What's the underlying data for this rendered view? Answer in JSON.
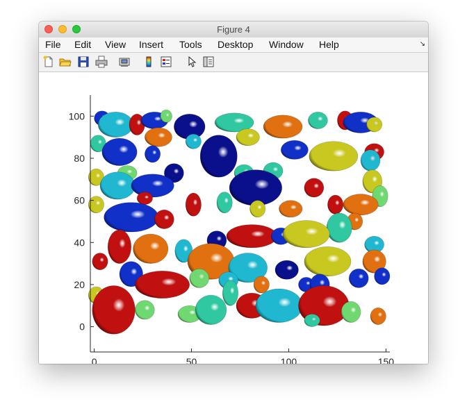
{
  "window": {
    "title": "Figure 4"
  },
  "menu": [
    {
      "id": "file",
      "label": "File"
    },
    {
      "id": "edit",
      "label": "Edit"
    },
    {
      "id": "view",
      "label": "View"
    },
    {
      "id": "insert",
      "label": "Insert"
    },
    {
      "id": "tools",
      "label": "Tools"
    },
    {
      "id": "desktop",
      "label": "Desktop"
    },
    {
      "id": "window",
      "label": "Window"
    },
    {
      "id": "help",
      "label": "Help"
    }
  ],
  "menu_corner_glyph": "↘",
  "toolbar": [
    {
      "id": "new-figure",
      "icon": "new-figure-icon"
    },
    {
      "id": "open-file",
      "icon": "folder-icon"
    },
    {
      "id": "save-figure",
      "icon": "save-icon"
    },
    {
      "id": "print-figure",
      "icon": "print-icon"
    },
    {
      "id": "link-plot",
      "icon": "link-plot-icon"
    },
    {
      "id": "insert-colorbar",
      "icon": "colorbar-icon"
    },
    {
      "id": "insert-legend",
      "icon": "legend-icon"
    },
    {
      "id": "edit-plot",
      "icon": "pointer-icon"
    },
    {
      "id": "property-editor",
      "icon": "property-inspector-icon"
    }
  ],
  "chart_data": {
    "type": "scatter",
    "render": "3d ellipsoids viewed from top",
    "xlim": [
      -2,
      152
    ],
    "ylim": [
      -12,
      110
    ],
    "xticks": [
      0,
      50,
      100,
      150
    ],
    "yticks": [
      0,
      20,
      40,
      60,
      80,
      100
    ],
    "grid": false,
    "colors": {
      "blue": "#1030c8",
      "navy": "#0a0f8c",
      "cyan": "#20b8d0",
      "teal": "#30c8a0",
      "green": "#70d870",
      "yellow": "#c8c820",
      "orange": "#e07010",
      "red": "#c01010"
    },
    "points": [
      {
        "x": 4,
        "y": 99,
        "rx": 4,
        "ry": 3.5,
        "color": "blue"
      },
      {
        "x": 11,
        "y": 96,
        "rx": 9,
        "ry": 6,
        "color": "cyan"
      },
      {
        "x": 22,
        "y": 96,
        "rx": 4,
        "ry": 5,
        "color": "red"
      },
      {
        "x": 31,
        "y": 98,
        "rx": 7,
        "ry": 4,
        "color": "blue"
      },
      {
        "x": 37,
        "y": 100,
        "rx": 3,
        "ry": 3,
        "color": "green"
      },
      {
        "x": 33,
        "y": 90,
        "rx": 7,
        "ry": 4.5,
        "color": "orange"
      },
      {
        "x": 49,
        "y": 95,
        "rx": 8,
        "ry": 6,
        "color": "navy"
      },
      {
        "x": 51,
        "y": 88,
        "rx": 4,
        "ry": 3.5,
        "color": "cyan"
      },
      {
        "x": 72,
        "y": 97,
        "rx": 10,
        "ry": 4.5,
        "color": "teal"
      },
      {
        "x": 79,
        "y": 90,
        "rx": 6,
        "ry": 4,
        "color": "yellow"
      },
      {
        "x": 97,
        "y": 95,
        "rx": 10,
        "ry": 5.5,
        "color": "orange"
      },
      {
        "x": 115,
        "y": 98,
        "rx": 5,
        "ry": 4,
        "color": "teal"
      },
      {
        "x": 129,
        "y": 98,
        "rx": 4,
        "ry": 4.5,
        "color": "red"
      },
      {
        "x": 137,
        "y": 97,
        "rx": 9,
        "ry": 5,
        "color": "blue"
      },
      {
        "x": 144,
        "y": 96,
        "rx": 4,
        "ry": 3.5,
        "color": "yellow"
      },
      {
        "x": 2,
        "y": 87,
        "rx": 4,
        "ry": 4,
        "color": "teal"
      },
      {
        "x": 13,
        "y": 83,
        "rx": 9,
        "ry": 6.5,
        "color": "blue"
      },
      {
        "x": 30,
        "y": 82,
        "rx": 4,
        "ry": 4,
        "color": "blue"
      },
      {
        "x": 64,
        "y": 81,
        "rx": 9.5,
        "ry": 10,
        "color": "navy"
      },
      {
        "x": 103,
        "y": 84,
        "rx": 7,
        "ry": 4.5,
        "color": "blue"
      },
      {
        "x": 123,
        "y": 81,
        "rx": 12.5,
        "ry": 7,
        "color": "yellow"
      },
      {
        "x": 144,
        "y": 83,
        "rx": 5,
        "ry": 4,
        "color": "red"
      },
      {
        "x": 142,
        "y": 79,
        "rx": 5,
        "ry": 5,
        "color": "cyan"
      },
      {
        "x": 1,
        "y": 71,
        "rx": 4,
        "ry": 4,
        "color": "yellow"
      },
      {
        "x": 17,
        "y": 73,
        "rx": 5,
        "ry": 3.5,
        "color": "green"
      },
      {
        "x": 41,
        "y": 73,
        "rx": 5,
        "ry": 4.5,
        "color": "navy"
      },
      {
        "x": 12,
        "y": 67,
        "rx": 9,
        "ry": 6.5,
        "color": "cyan"
      },
      {
        "x": 30,
        "y": 67,
        "rx": 11,
        "ry": 5.5,
        "color": "blue"
      },
      {
        "x": 77,
        "y": 73,
        "rx": 5,
        "ry": 4,
        "color": "teal"
      },
      {
        "x": 92,
        "y": 74,
        "rx": 5,
        "ry": 4,
        "color": "teal"
      },
      {
        "x": 83,
        "y": 66,
        "rx": 13.5,
        "ry": 8.5,
        "color": "navy"
      },
      {
        "x": 113,
        "y": 66,
        "rx": 5,
        "ry": 4.5,
        "color": "red"
      },
      {
        "x": 143,
        "y": 69,
        "rx": 5,
        "ry": 5.5,
        "color": "yellow"
      },
      {
        "x": 147,
        "y": 62,
        "rx": 4,
        "ry": 5,
        "color": "green"
      },
      {
        "x": 1,
        "y": 58,
        "rx": 4,
        "ry": 4,
        "color": "yellow"
      },
      {
        "x": 26,
        "y": 61,
        "rx": 4,
        "ry": 3,
        "color": "red"
      },
      {
        "x": 51,
        "y": 58,
        "rx": 4,
        "ry": 5.5,
        "color": "red"
      },
      {
        "x": 67,
        "y": 59,
        "rx": 4,
        "ry": 5,
        "color": "teal"
      },
      {
        "x": 84,
        "y": 56,
        "rx": 4,
        "ry": 4,
        "color": "yellow"
      },
      {
        "x": 101,
        "y": 56,
        "rx": 6,
        "ry": 4,
        "color": "orange"
      },
      {
        "x": 124,
        "y": 58,
        "rx": 4,
        "ry": 4.5,
        "color": "red"
      },
      {
        "x": 137,
        "y": 58,
        "rx": 9,
        "ry": 5,
        "color": "orange"
      },
      {
        "x": 134,
        "y": 50,
        "rx": 4,
        "ry": 4,
        "color": "orange"
      },
      {
        "x": 19,
        "y": 52,
        "rx": 14,
        "ry": 7,
        "color": "blue"
      },
      {
        "x": 36,
        "y": 51,
        "rx": 5,
        "ry": 4.5,
        "color": "red"
      },
      {
        "x": 126,
        "y": 47,
        "rx": 6.5,
        "ry": 7,
        "color": "teal"
      },
      {
        "x": 13,
        "y": 38,
        "rx": 6,
        "ry": 8,
        "color": "red"
      },
      {
        "x": 29,
        "y": 37,
        "rx": 9,
        "ry": 7,
        "color": "orange"
      },
      {
        "x": 46,
        "y": 36,
        "rx": 4.5,
        "ry": 5.5,
        "color": "cyan"
      },
      {
        "x": 63,
        "y": 41,
        "rx": 5,
        "ry": 4.5,
        "color": "navy"
      },
      {
        "x": 81,
        "y": 43,
        "rx": 13,
        "ry": 5.5,
        "color": "red"
      },
      {
        "x": 96,
        "y": 43,
        "rx": 5,
        "ry": 4,
        "color": "blue"
      },
      {
        "x": 109,
        "y": 44,
        "rx": 12,
        "ry": 6.5,
        "color": "yellow"
      },
      {
        "x": 144,
        "y": 39,
        "rx": 5,
        "ry": 4,
        "color": "cyan"
      },
      {
        "x": 3,
        "y": 31,
        "rx": 4,
        "ry": 4,
        "color": "red"
      },
      {
        "x": 60,
        "y": 31,
        "rx": 12,
        "ry": 8.5,
        "color": "orange"
      },
      {
        "x": 79,
        "y": 28,
        "rx": 10,
        "ry": 7,
        "color": "cyan"
      },
      {
        "x": 99,
        "y": 27,
        "rx": 6,
        "ry": 4.5,
        "color": "navy"
      },
      {
        "x": 120,
        "y": 31,
        "rx": 12,
        "ry": 7,
        "color": "yellow"
      },
      {
        "x": 144,
        "y": 31,
        "rx": 6,
        "ry": 5.5,
        "color": "orange"
      },
      {
        "x": 19,
        "y": 25,
        "rx": 6,
        "ry": 6,
        "color": "blue"
      },
      {
        "x": 54,
        "y": 23,
        "rx": 5,
        "ry": 4.5,
        "color": "green"
      },
      {
        "x": 35,
        "y": 20,
        "rx": 14,
        "ry": 6.5,
        "color": "red"
      },
      {
        "x": 69,
        "y": 22,
        "rx": 5,
        "ry": 4,
        "color": "cyan"
      },
      {
        "x": 86,
        "y": 20,
        "rx": 4,
        "ry": 4,
        "color": "orange"
      },
      {
        "x": 109,
        "y": 20,
        "rx": 4,
        "ry": 3.5,
        "color": "blue"
      },
      {
        "x": 116,
        "y": 20,
        "rx": 5,
        "ry": 5,
        "color": "blue"
      },
      {
        "x": 136,
        "y": 23,
        "rx": 5,
        "ry": 4.5,
        "color": "blue"
      },
      {
        "x": 148,
        "y": 24,
        "rx": 4,
        "ry": 4,
        "color": "blue"
      },
      {
        "x": 1,
        "y": 15,
        "rx": 4,
        "ry": 4,
        "color": "yellow"
      },
      {
        "x": 10,
        "y": 8,
        "rx": 11,
        "ry": 11.5,
        "color": "red"
      },
      {
        "x": 26,
        "y": 8,
        "rx": 5,
        "ry": 4.5,
        "color": "green"
      },
      {
        "x": 49,
        "y": 6,
        "rx": 6,
        "ry": 4,
        "color": "green"
      },
      {
        "x": 60,
        "y": 8,
        "rx": 8,
        "ry": 7,
        "color": "teal"
      },
      {
        "x": 70,
        "y": 16,
        "rx": 4,
        "ry": 6,
        "color": "teal"
      },
      {
        "x": 81,
        "y": 10,
        "rx": 8,
        "ry": 6,
        "color": "red"
      },
      {
        "x": 95,
        "y": 10,
        "rx": 12,
        "ry": 8,
        "color": "cyan"
      },
      {
        "x": 118,
        "y": 10,
        "rx": 13,
        "ry": 9.5,
        "color": "red"
      },
      {
        "x": 112,
        "y": 3,
        "rx": 4,
        "ry": 3,
        "color": "teal"
      },
      {
        "x": 132,
        "y": 7,
        "rx": 5,
        "ry": 5,
        "color": "green"
      },
      {
        "x": 146,
        "y": 5,
        "rx": 4,
        "ry": 4,
        "color": "orange"
      }
    ]
  }
}
